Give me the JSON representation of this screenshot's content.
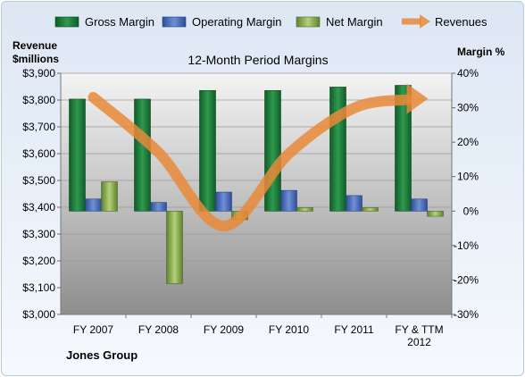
{
  "chart_data": {
    "type": "bar",
    "title": "12-Month Period Margins",
    "company": "Jones Group",
    "categories": [
      "FY 2007",
      "FY 2008",
      "FY 2009",
      "FY 2010",
      "FY 2011",
      "FY & TTM 2012"
    ],
    "left_axis": {
      "label_line1": "Revenue",
      "label_line2": "$millions",
      "min": 3000,
      "max": 3900,
      "step": 100,
      "tick_labels": [
        "$3,000",
        "$3,100",
        "$3,200",
        "$3,300",
        "$3,400",
        "$3,500",
        "$3,600",
        "$3,700",
        "$3,800",
        "$3,900"
      ]
    },
    "right_axis": {
      "label": "Margin %",
      "min": -30,
      "max": 40,
      "step": 10,
      "tick_labels": [
        "-30%",
        "-20%",
        "-10%",
        "0%",
        "10%",
        "20%",
        "30%",
        "40%"
      ]
    },
    "grid": true,
    "legend_position": "top",
    "series": [
      {
        "name": "Gross Margin",
        "kind": "bar",
        "axis": "right",
        "color": "#1f7a3a",
        "values": [
          32.5,
          32.5,
          35,
          35,
          36,
          36.5
        ]
      },
      {
        "name": "Operating Margin",
        "kind": "bar",
        "axis": "right",
        "color": "#4a6bb5",
        "values": [
          3.5,
          2.5,
          5.5,
          6,
          4.5,
          3.5
        ]
      },
      {
        "name": "Net Margin",
        "kind": "bar",
        "axis": "right",
        "color": "#8aab4f",
        "values": [
          8.5,
          -21,
          -2.5,
          1,
          1,
          -1.5
        ]
      },
      {
        "name": "Revenues",
        "kind": "line",
        "axis": "left",
        "color": "#e98a3a",
        "values": [
          3810,
          3605,
          3330,
          3600,
          3770,
          3805
        ]
      }
    ]
  }
}
